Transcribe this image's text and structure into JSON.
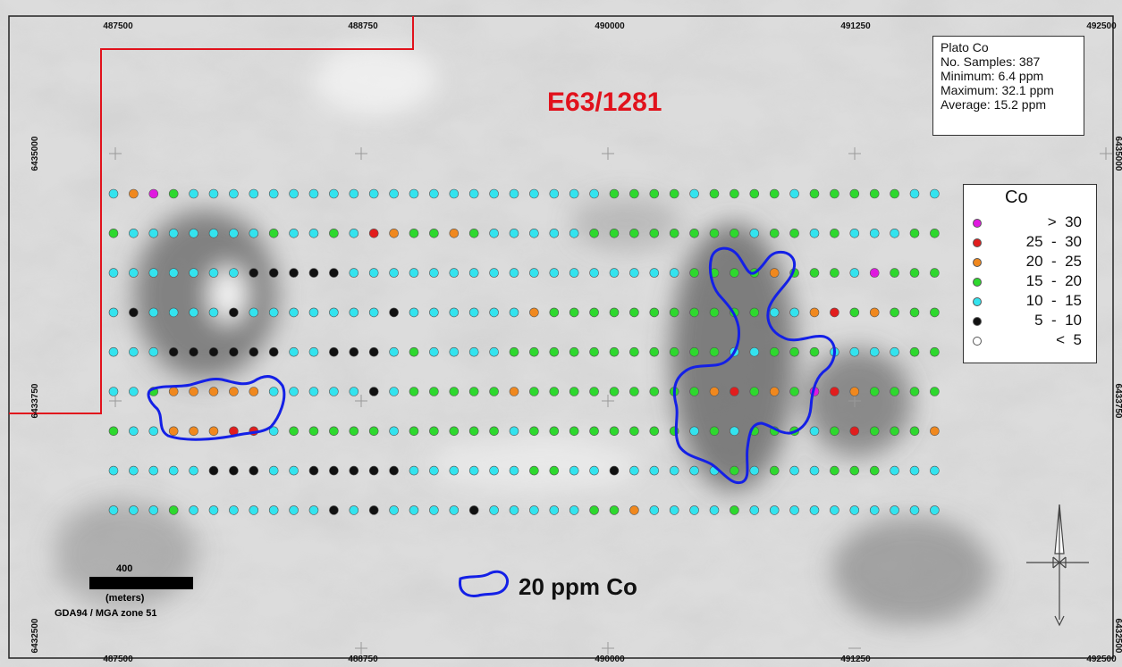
{
  "map": {
    "tenement_label": "E63/1281",
    "contour_label": "20 ppm Co",
    "stats_box": {
      "title": "Plato Co",
      "samples": "No. Samples: 387",
      "minimum": "Minimum: 6.4 ppm",
      "maximum": "Maximum: 32.1 ppm",
      "average": "Average: 15.2 ppm"
    },
    "legend": {
      "title": "Co",
      "classes": [
        {
          "range": ">  30",
          "color": "#e018e0"
        },
        {
          "range": "25  -  30",
          "color": "#e11d1d"
        },
        {
          "range": "20  -  25",
          "color": "#f0881e"
        },
        {
          "range": "15  -  20",
          "color": "#2ed82e"
        },
        {
          "range": "10  -  15",
          "color": "#33e3ee"
        },
        {
          "range": "5  -  10",
          "color": "#111111"
        },
        {
          "range": "<  5",
          "color": "#ffffff"
        }
      ]
    },
    "scale_bar": {
      "value": "400",
      "unit": "(meters)",
      "datum": "GDA94 / MGA zone 51"
    },
    "eastings": [
      "487500",
      "488750",
      "490000",
      "491250",
      "492500"
    ],
    "northings": [
      "6435000",
      "6433750",
      "6432500"
    ],
    "right_northings_partial": [
      "6435000",
      "6433750",
      "6432500"
    ],
    "colors": {
      "tenement": "#e1121c",
      "contour": "#1420e6"
    },
    "sample_lines": [
      {
        "row": 1,
        "codes": "DOPGCCCCCCCCCCCCCCCCCCCCCGGGGCGGGGCGGGGGCCGGGGGGGGGOGGG"
      },
      {
        "row": 2,
        "codes": "GCCCCCCCGCCGCROGGOGCCCCCGGGGGGGGCGGCGCCCGGCGGGCGGGRCCC"
      },
      {
        "row": 3,
        "codes": "CCCCCCCBBBBBCCCCCCCCCCCCCCCCCGGGGOGGGCPGGGOGGGGCGGGCCC"
      },
      {
        "row": 4,
        "codes": "CBCCCCBCCCCCCCBCCCCCCOGGGGGGGGGGGCCORGOGGGGGGGGGGGGGCCC"
      },
      {
        "row": 5,
        "codes": "CCCBBBBBBCCBBBCGCCCCGGGGGGGGGGGCCGGGCCCCGGGGGGGCGGGCCC"
      },
      {
        "row": 6,
        "codes": "CCGOOOOOCCCCCBCGGGGGOGGGGGGGGGORGOGPROGGGGGGGGGGGCGGCC"
      },
      {
        "row": 7,
        "codes": "GCCOOORRCGGGGGCGGGGGCGGGGGGGGCGCGGGCGRGGGOCCCCCCCCCCCCC"
      },
      {
        "row": 8,
        "codes": "CCCCCBBBCCBBBBBCCCCCCGGCCBCCCCCGCGCCGGGCCCCCCCCCCCCCCC"
      },
      {
        "row": 9,
        "codes": "CCCGCCCCCCCBCBCCCCBCCCCCGGOCCCCGCCCCCCCCCCCCCCCCCCCCCC"
      }
    ],
    "code_colors": {
      "P": "#e018e0",
      "R": "#e11d1d",
      "O": "#f0881e",
      "G": "#2ed82e",
      "C": "#33e3ee",
      "B": "#111111",
      "W": "#ffffff"
    }
  }
}
